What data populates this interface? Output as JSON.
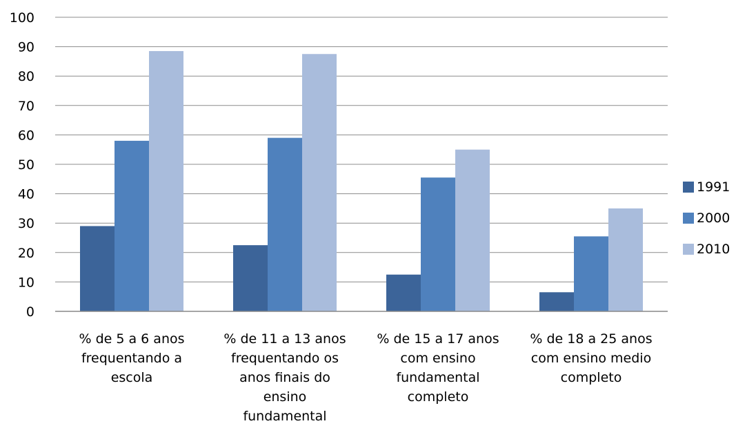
{
  "chart_data": {
    "type": "bar",
    "title": "",
    "xlabel": "",
    "ylabel": "",
    "ylim": [
      0,
      100
    ],
    "yticks": [
      0,
      10,
      20,
      30,
      40,
      50,
      60,
      70,
      80,
      90,
      100
    ],
    "grid": true,
    "legend_position": "right",
    "categories": [
      [
        "% de 5 a 6 anos",
        "frequentando a",
        "escola"
      ],
      [
        "% de 11 a 13 anos",
        "frequentando os",
        "anos finais do",
        "ensino",
        "fundamental"
      ],
      [
        "% de 15 a 17 anos",
        "com ensino",
        "fundamental",
        "completo"
      ],
      [
        "% de 18 a 25 anos",
        "com ensino medio",
        "completo"
      ]
    ],
    "series": [
      {
        "name": "1991",
        "color": "#3c6499",
        "values": [
          29,
          22.5,
          12.5,
          6.5
        ]
      },
      {
        "name": "2000",
        "color": "#4f81bd",
        "values": [
          58,
          59,
          45.5,
          25.5
        ]
      },
      {
        "name": "2010",
        "color": "#a9bcdc",
        "values": [
          88.5,
          87.5,
          55,
          35
        ]
      }
    ]
  }
}
